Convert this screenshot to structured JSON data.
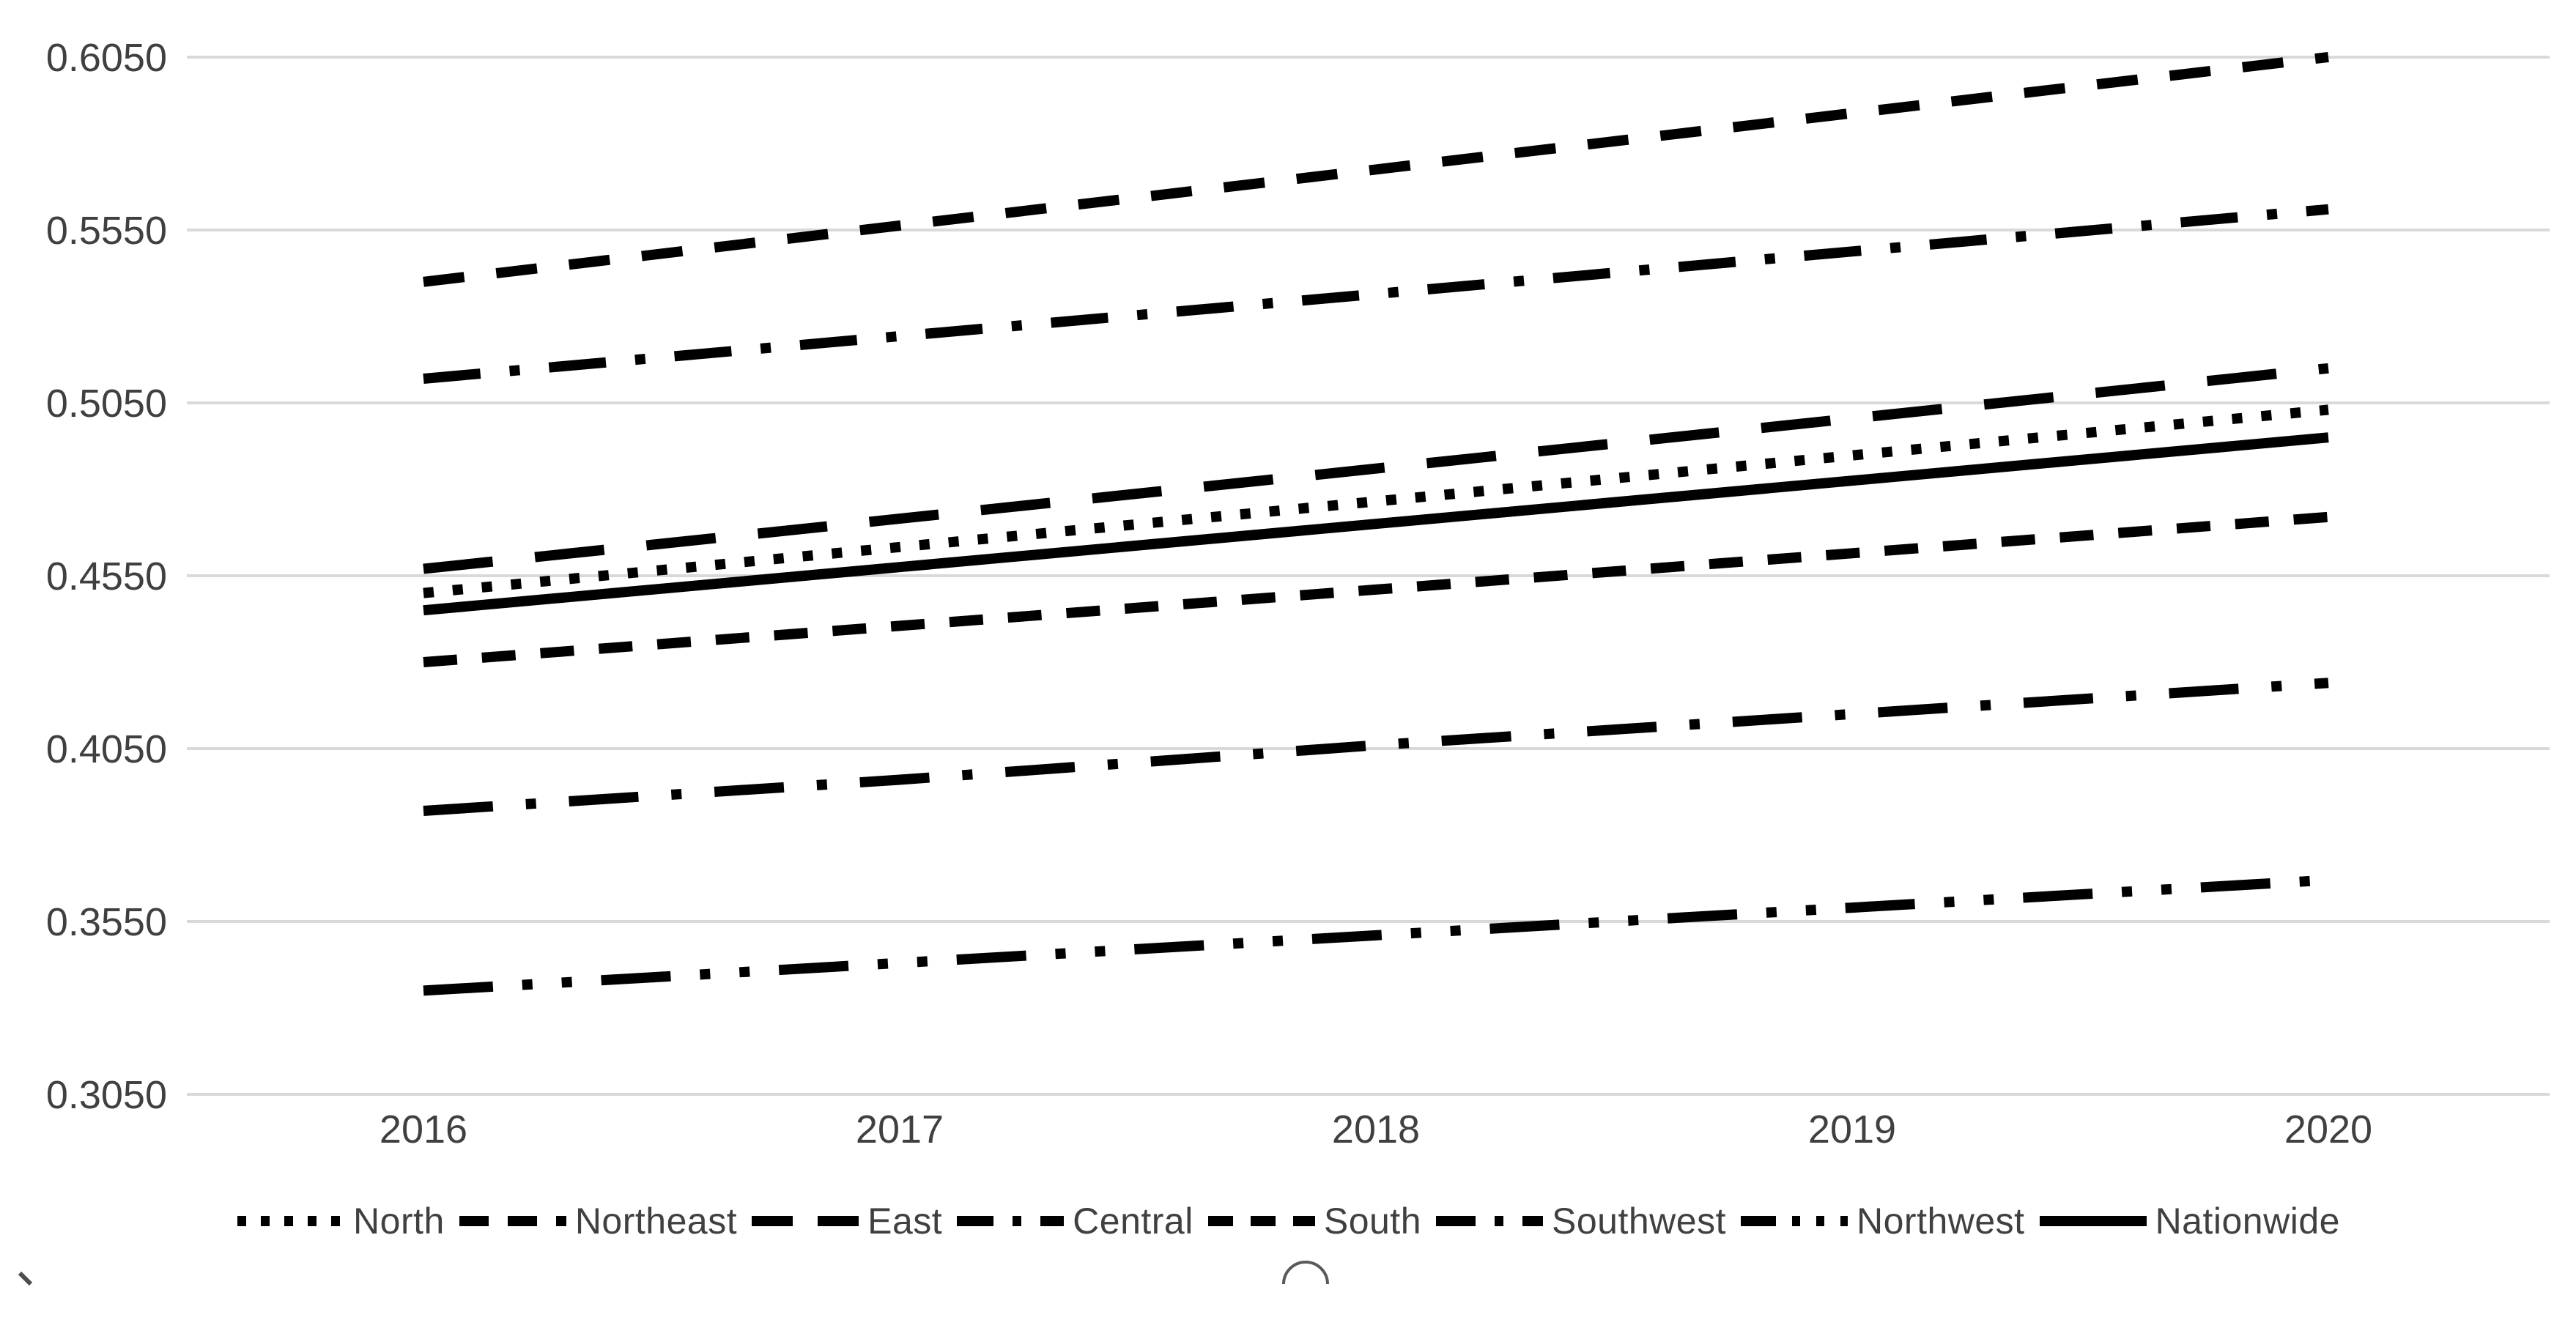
{
  "chart_data": {
    "type": "line",
    "title": "",
    "xlabel": "",
    "ylabel": "",
    "categories": [
      "2016",
      "2017",
      "2018",
      "2019",
      "2020"
    ],
    "x": [
      2016,
      2017,
      2018,
      2019,
      2020
    ],
    "series": [
      {
        "name": "North",
        "style": "dotted",
        "values": [
          0.45,
          0.4633,
          0.4765,
          0.4898,
          0.503
        ]
      },
      {
        "name": "Northeast",
        "style": "dash",
        "values": [
          0.54,
          0.5563,
          0.5725,
          0.5888,
          0.605
        ]
      },
      {
        "name": "East",
        "style": "long-dash",
        "values": [
          0.457,
          0.4715,
          0.486,
          0.5005,
          0.515
        ]
      },
      {
        "name": "Central",
        "style": "dash-dot",
        "values": [
          0.512,
          0.5243,
          0.5365,
          0.5488,
          0.561
        ]
      },
      {
        "name": "South",
        "style": "short-dash",
        "values": [
          0.43,
          0.4405,
          0.451,
          0.4615,
          0.472
        ]
      },
      {
        "name": "Southwest",
        "style": "long-dash-dot",
        "values": [
          0.387,
          0.396,
          0.406,
          0.415,
          0.424
        ]
      },
      {
        "name": "Northwest",
        "style": "dash-dot-dot",
        "values": [
          0.335,
          0.343,
          0.351,
          0.359,
          0.367
        ]
      },
      {
        "name": "Nationwide",
        "style": "solid",
        "values": [
          0.445,
          0.4575,
          0.47,
          0.4825,
          0.495
        ]
      }
    ],
    "y_ticks": [
      "0.6050",
      "0.5550",
      "0.5050",
      "0.4550",
      "0.4050",
      "0.3550",
      "0.3050"
    ],
    "ylim": [
      0.305,
      0.605
    ],
    "y_tick_step": 0.05,
    "grid": true,
    "legend_position": "bottom",
    "line_color": "#000000",
    "gridline_color": "#d9d9d9",
    "label_color": "#404040"
  },
  "legend": {
    "items": [
      {
        "label": "North",
        "style": "dotted"
      },
      {
        "label": "Northeast",
        "style": "dash"
      },
      {
        "label": "East",
        "style": "long-dash"
      },
      {
        "label": "Central",
        "style": "dash-dot"
      },
      {
        "label": "South",
        "style": "short-dash"
      },
      {
        "label": "Southwest",
        "style": "long-dash-dot"
      },
      {
        "label": "Northwest",
        "style": "dash-dot-dot"
      },
      {
        "label": "Nationwide",
        "style": "solid"
      }
    ]
  },
  "decorations": {
    "arc_mark": "semicircle-arc",
    "corner_mark": "backslash-tick"
  }
}
